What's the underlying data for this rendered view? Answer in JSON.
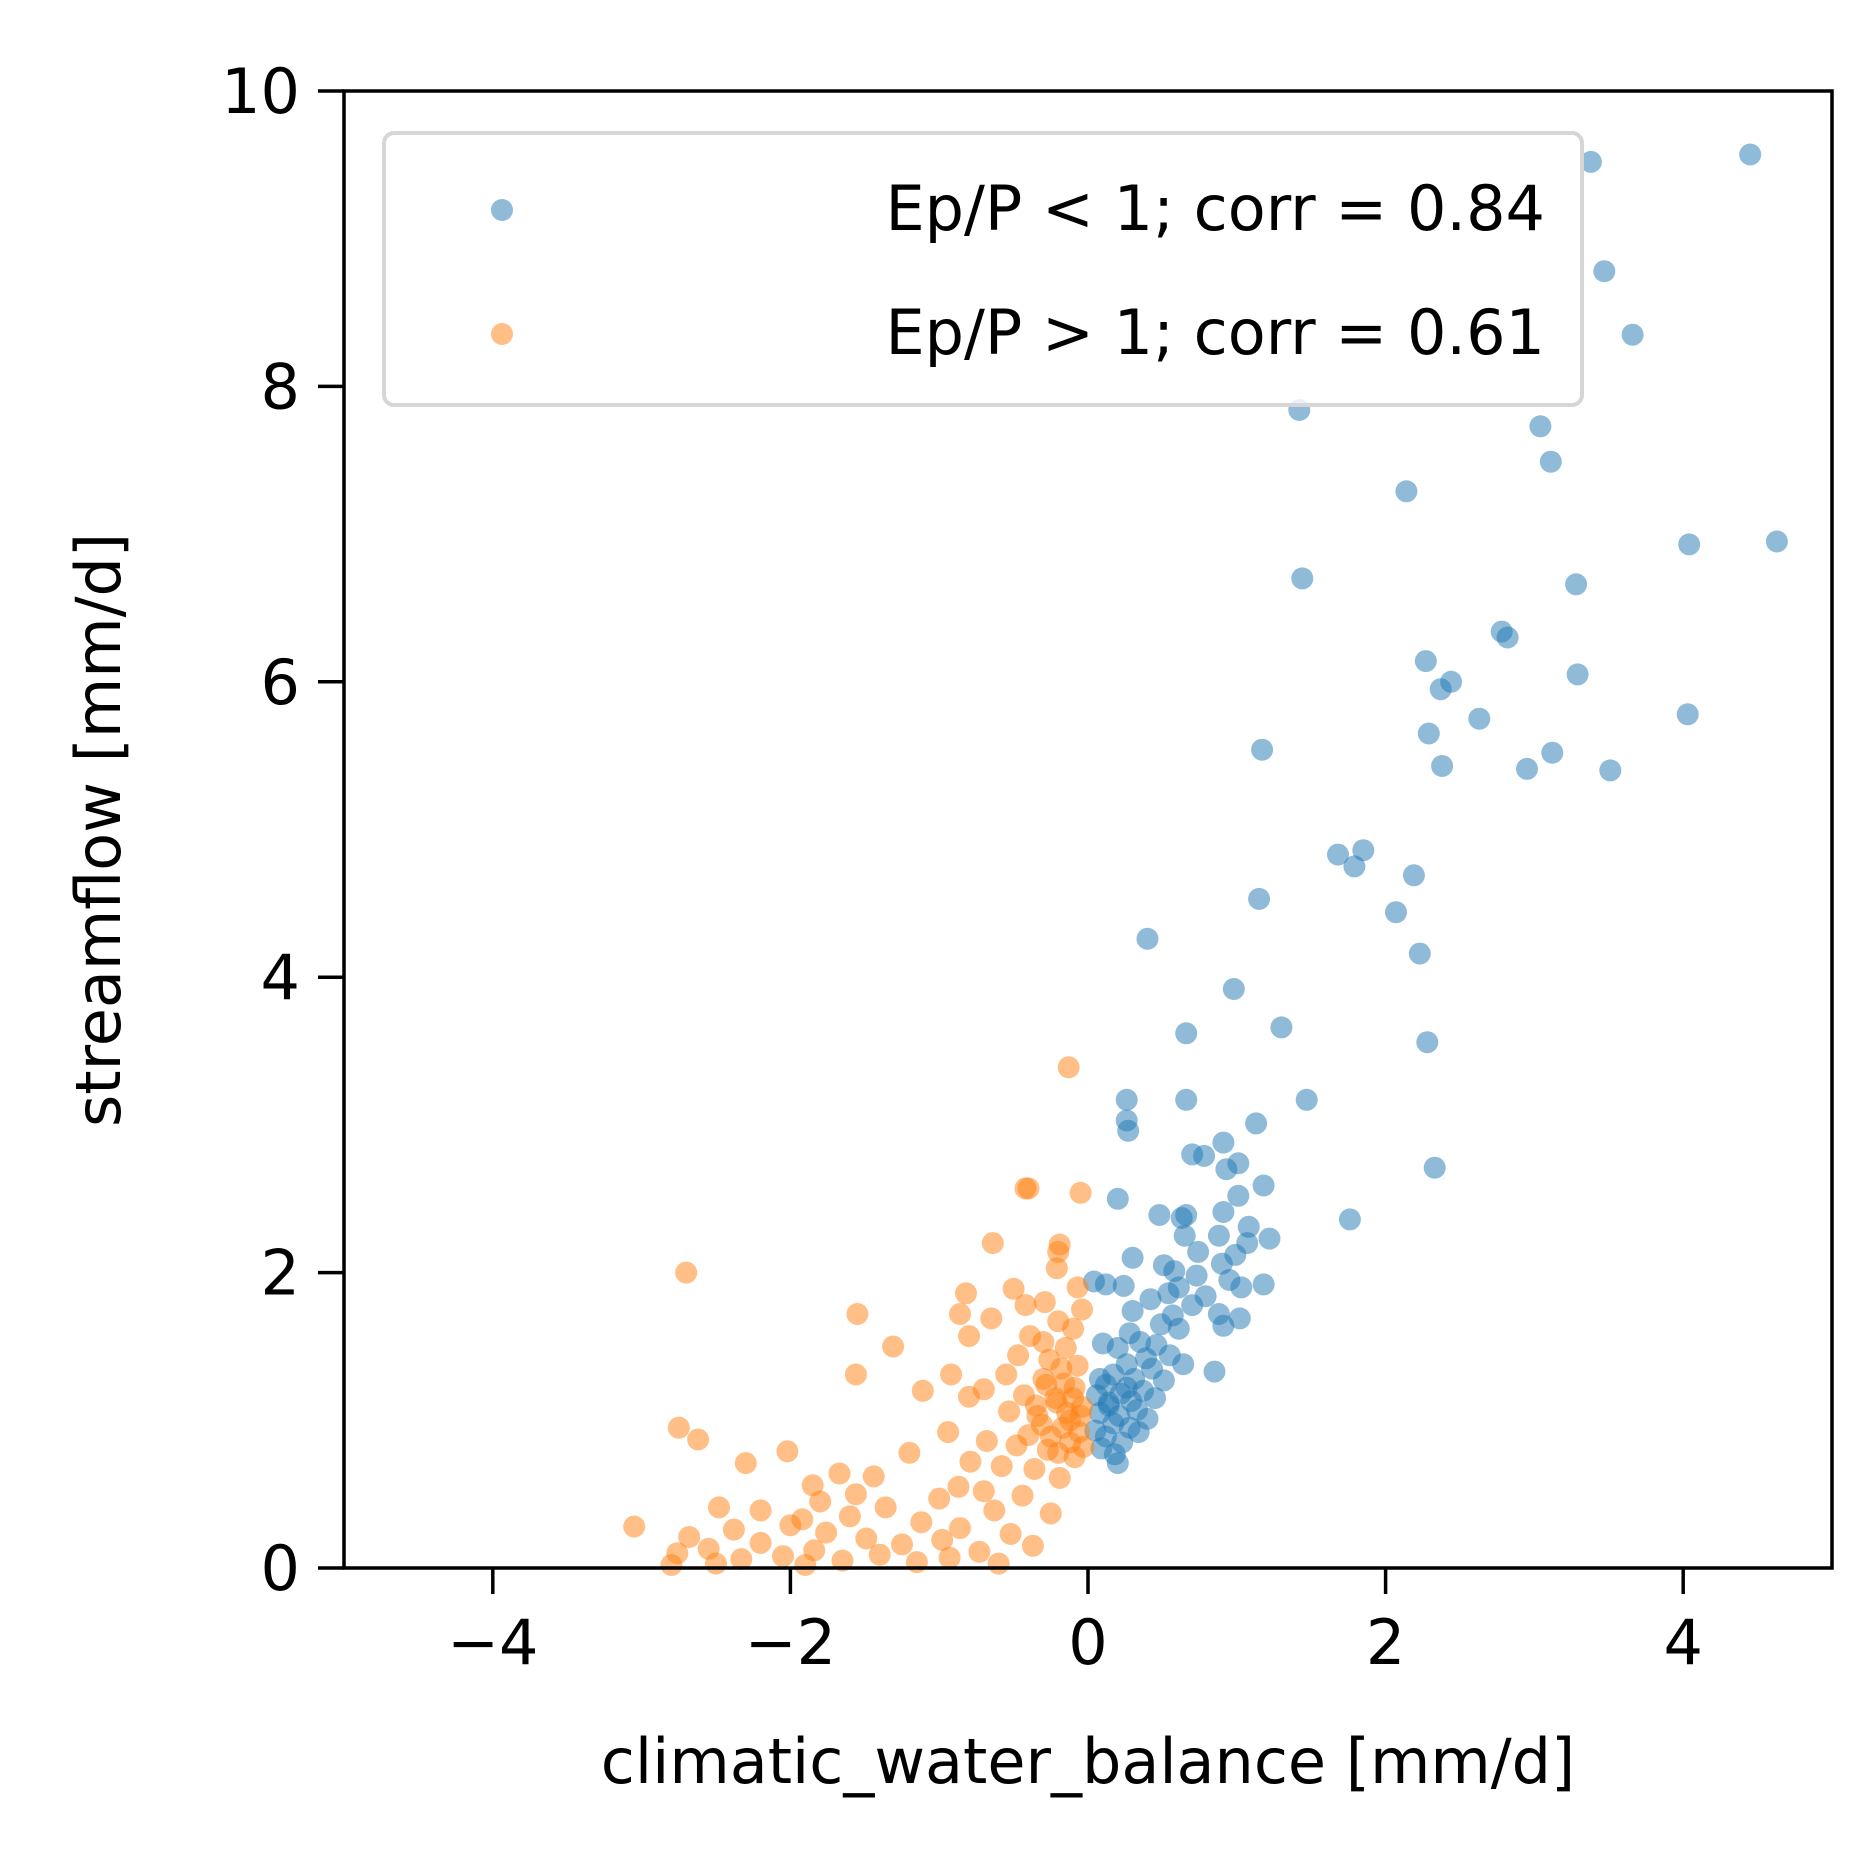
{
  "chart_data": {
    "type": "scatter",
    "xlabel": "climatic_water_balance [mm/d]",
    "ylabel": "streamflow [mm/d]",
    "xlim": [
      -5,
      5
    ],
    "ylim": [
      0,
      10
    ],
    "xticks": [
      -4,
      -2,
      0,
      2,
      4
    ],
    "yticks": [
      0,
      2,
      4,
      6,
      8,
      10
    ],
    "xtick_labels": [
      "−4",
      "−2",
      "0",
      "2",
      "4"
    ],
    "ytick_labels": [
      "0",
      "2",
      "4",
      "6",
      "8",
      "10"
    ],
    "grid": false,
    "legend_position": "top-left",
    "series": [
      {
        "name": "Ep/P < 1; corr = 0.84",
        "color": "#1f77b4",
        "points": [
          [
            4.45,
            9.57
          ],
          [
            3.38,
            9.52
          ],
          [
            3.47,
            8.78
          ],
          [
            3.66,
            8.35
          ],
          [
            1.42,
            7.84
          ],
          [
            3.04,
            7.73
          ],
          [
            3.11,
            7.49
          ],
          [
            2.14,
            7.29
          ],
          [
            4.63,
            6.95
          ],
          [
            4.04,
            6.93
          ],
          [
            1.44,
            6.7
          ],
          [
            3.28,
            6.66
          ],
          [
            2.78,
            6.34
          ],
          [
            2.82,
            6.3
          ],
          [
            2.27,
            6.14
          ],
          [
            2.44,
            6.0
          ],
          [
            2.37,
            5.95
          ],
          [
            3.29,
            6.05
          ],
          [
            2.29,
            5.65
          ],
          [
            2.63,
            5.75
          ],
          [
            4.03,
            5.78
          ],
          [
            1.17,
            5.54
          ],
          [
            3.12,
            5.52
          ],
          [
            2.38,
            5.43
          ],
          [
            2.95,
            5.41
          ],
          [
            3.51,
            5.4
          ],
          [
            1.85,
            4.86
          ],
          [
            1.68,
            4.83
          ],
          [
            1.79,
            4.75
          ],
          [
            2.19,
            4.69
          ],
          [
            1.15,
            4.53
          ],
          [
            2.07,
            4.44
          ],
          [
            0.4,
            4.26
          ],
          [
            2.23,
            4.16
          ],
          [
            0.98,
            3.92
          ],
          [
            1.3,
            3.66
          ],
          [
            0.66,
            3.62
          ],
          [
            2.28,
            3.56
          ],
          [
            0.26,
            3.17
          ],
          [
            0.66,
            3.17
          ],
          [
            1.47,
            3.17
          ],
          [
            0.26,
            3.03
          ],
          [
            0.27,
            2.96
          ],
          [
            1.13,
            3.01
          ],
          [
            0.91,
            2.88
          ],
          [
            0.7,
            2.8
          ],
          [
            0.78,
            2.79
          ],
          [
            1.01,
            2.74
          ],
          [
            0.93,
            2.7
          ],
          [
            1.18,
            2.59
          ],
          [
            2.33,
            2.71
          ],
          [
            0.2,
            2.5
          ],
          [
            1.01,
            2.52
          ],
          [
            0.48,
            2.39
          ],
          [
            0.66,
            2.39
          ],
          [
            0.63,
            2.37
          ],
          [
            1.76,
            2.36
          ],
          [
            0.91,
            2.41
          ],
          [
            1.08,
            2.31
          ],
          [
            1.07,
            2.2
          ],
          [
            1.22,
            2.23
          ],
          [
            0.88,
            2.25
          ],
          [
            0.65,
            2.25
          ],
          [
            0.74,
            2.14
          ],
          [
            0.99,
            2.12
          ],
          [
            0.3,
            2.1
          ],
          [
            0.51,
            2.05
          ],
          [
            0.9,
            2.06
          ],
          [
            0.58,
            2.01
          ],
          [
            0.73,
            1.98
          ],
          [
            0.04,
            1.94
          ],
          [
            0.12,
            1.92
          ],
          [
            0.24,
            1.91
          ],
          [
            0.95,
            1.95
          ],
          [
            1.03,
            1.9
          ],
          [
            1.18,
            1.92
          ],
          [
            0.61,
            1.9
          ],
          [
            0.54,
            1.86
          ],
          [
            0.79,
            1.84
          ],
          [
            0.42,
            1.82
          ],
          [
            0.7,
            1.78
          ],
          [
            0.88,
            1.72
          ],
          [
            1.02,
            1.69
          ],
          [
            0.3,
            1.74
          ],
          [
            0.57,
            1.71
          ],
          [
            0.49,
            1.65
          ],
          [
            0.61,
            1.62
          ],
          [
            0.28,
            1.59
          ],
          [
            0.91,
            1.64
          ],
          [
            0.35,
            1.53
          ],
          [
            0.46,
            1.51
          ],
          [
            0.1,
            1.52
          ],
          [
            0.2,
            1.49
          ],
          [
            0.55,
            1.44
          ],
          [
            0.39,
            1.42
          ],
          [
            0.64,
            1.38
          ],
          [
            0.26,
            1.38
          ],
          [
            0.43,
            1.35
          ],
          [
            0.85,
            1.33
          ],
          [
            0.17,
            1.31
          ],
          [
            0.31,
            1.28
          ],
          [
            0.51,
            1.27
          ],
          [
            0.12,
            1.24
          ],
          [
            0.37,
            1.2
          ],
          [
            0.22,
            1.18
          ],
          [
            0.06,
            1.17
          ],
          [
            0.45,
            1.15
          ],
          [
            0.29,
            1.13
          ],
          [
            0.14,
            1.1
          ],
          [
            0.33,
            1.07
          ],
          [
            0.08,
            1.05
          ],
          [
            0.21,
            1.03
          ],
          [
            0.4,
            1.01
          ],
          [
            0.17,
            0.98
          ],
          [
            0.28,
            0.95
          ],
          [
            0.05,
            0.93
          ],
          [
            0.34,
            0.92
          ],
          [
            0.12,
            0.89
          ],
          [
            0.23,
            0.85
          ],
          [
            0.09,
            0.81
          ],
          [
            0.18,
            0.77
          ],
          [
            0.2,
            0.71
          ],
          [
            0.14,
            1.12
          ],
          [
            0.26,
            1.22
          ],
          [
            0.08,
            1.28
          ]
        ]
      },
      {
        "name": "Ep/P > 1; corr = 0.61",
        "color": "#ff7f0e",
        "points": [
          [
            -0.13,
            3.39
          ],
          [
            -0.42,
            2.57
          ],
          [
            -0.4,
            2.57
          ],
          [
            -0.05,
            2.54
          ],
          [
            -0.64,
            2.2
          ],
          [
            -0.19,
            2.19
          ],
          [
            -0.2,
            2.14
          ],
          [
            -2.7,
            2.0
          ],
          [
            -0.21,
            2.03
          ],
          [
            -0.07,
            1.9
          ],
          [
            -0.5,
            1.89
          ],
          [
            -0.82,
            1.86
          ],
          [
            -0.42,
            1.78
          ],
          [
            -0.29,
            1.8
          ],
          [
            -0.04,
            1.75
          ],
          [
            -1.55,
            1.72
          ],
          [
            -0.86,
            1.72
          ],
          [
            -0.65,
            1.69
          ],
          [
            -0.2,
            1.67
          ],
          [
            -0.1,
            1.62
          ],
          [
            -0.8,
            1.57
          ],
          [
            -0.39,
            1.57
          ],
          [
            -1.31,
            1.5
          ],
          [
            -0.15,
            1.49
          ],
          [
            -0.47,
            1.44
          ],
          [
            -0.26,
            1.41
          ],
          [
            -0.07,
            1.37
          ],
          [
            -0.92,
            1.31
          ],
          [
            -1.56,
            1.31
          ],
          [
            -0.55,
            1.31
          ],
          [
            -0.3,
            1.28
          ],
          [
            -0.16,
            1.25
          ],
          [
            -0.7,
            1.21
          ],
          [
            -1.11,
            1.2
          ],
          [
            -0.43,
            1.17
          ],
          [
            -0.8,
            1.16
          ],
          [
            -0.21,
            1.12
          ],
          [
            -0.04,
            1.09
          ],
          [
            -0.53,
            1.06
          ],
          [
            -0.34,
            1.03
          ],
          [
            -0.12,
            1.0
          ],
          [
            -2.75,
            0.95
          ],
          [
            -0.94,
            0.92
          ],
          [
            -2.62,
            0.87
          ],
          [
            -0.68,
            0.86
          ],
          [
            -0.48,
            0.83
          ],
          [
            -0.27,
            0.8
          ],
          [
            -2.02,
            0.79
          ],
          [
            -1.2,
            0.78
          ],
          [
            -0.09,
            0.75
          ],
          [
            -0.79,
            0.72
          ],
          [
            -2.3,
            0.71
          ],
          [
            -0.58,
            0.69
          ],
          [
            -0.36,
            0.67
          ],
          [
            -1.67,
            0.64
          ],
          [
            -1.44,
            0.62
          ],
          [
            -0.19,
            0.61
          ],
          [
            -1.85,
            0.56
          ],
          [
            -0.87,
            0.55
          ],
          [
            -0.7,
            0.52
          ],
          [
            -1.56,
            0.5
          ],
          [
            -0.44,
            0.49
          ],
          [
            -1.0,
            0.47
          ],
          [
            -1.8,
            0.45
          ],
          [
            -2.48,
            0.41
          ],
          [
            -2.2,
            0.39
          ],
          [
            -1.36,
            0.41
          ],
          [
            -0.63,
            0.39
          ],
          [
            -0.25,
            0.37
          ],
          [
            -1.6,
            0.35
          ],
          [
            -1.92,
            0.33
          ],
          [
            -1.12,
            0.31
          ],
          [
            -2.0,
            0.29
          ],
          [
            -3.05,
            0.28
          ],
          [
            -0.86,
            0.27
          ],
          [
            -2.38,
            0.26
          ],
          [
            -1.76,
            0.24
          ],
          [
            -0.52,
            0.23
          ],
          [
            -2.68,
            0.21
          ],
          [
            -1.49,
            0.2
          ],
          [
            -0.98,
            0.19
          ],
          [
            -2.2,
            0.17
          ],
          [
            -1.25,
            0.16
          ],
          [
            -0.37,
            0.15
          ],
          [
            -2.55,
            0.13
          ],
          [
            -1.84,
            0.12
          ],
          [
            -0.73,
            0.11
          ],
          [
            -2.76,
            0.1
          ],
          [
            -1.4,
            0.09
          ],
          [
            -2.05,
            0.08
          ],
          [
            -0.93,
            0.07
          ],
          [
            -2.33,
            0.06
          ],
          [
            -1.65,
            0.05
          ],
          [
            -1.15,
            0.04
          ],
          [
            -2.5,
            0.03
          ],
          [
            -0.6,
            0.03
          ],
          [
            -2.8,
            0.02
          ],
          [
            -1.9,
            0.02
          ],
          [
            -0.3,
            1.53
          ],
          [
            -0.18,
            1.35
          ],
          [
            -0.09,
            1.22
          ],
          [
            -0.22,
            1.15
          ],
          [
            -0.14,
            1.05
          ],
          [
            -0.31,
            0.97
          ],
          [
            -0.06,
            0.92
          ],
          [
            -0.25,
            0.89
          ],
          [
            -0.12,
            0.85
          ],
          [
            -0.03,
            0.82
          ],
          [
            -0.2,
            0.78
          ],
          [
            -0.35,
            1.1
          ],
          [
            -0.17,
            0.95
          ],
          [
            -0.1,
            1.15
          ],
          [
            -0.28,
            1.24
          ],
          [
            -0.05,
            1.03
          ],
          [
            -0.4,
            0.9
          ]
        ]
      }
    ]
  }
}
